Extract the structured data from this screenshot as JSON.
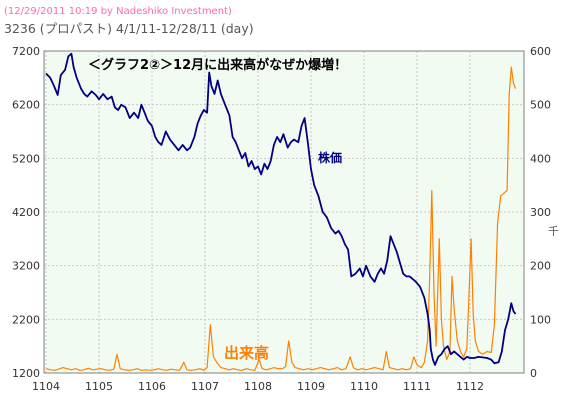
{
  "header": {
    "credit": "(12/29/2011 10:19 by Nadeshiko Investment)",
    "title": "3236 (プロパスト) 4/1/11-12/28/11 (day)"
  },
  "chart_data": {
    "type": "line",
    "annotation": "＜グラフ2②＞12月に出来高がなぜか爆増！",
    "price_label": "株価",
    "volume_label": "出来高",
    "y_right_unit": "千",
    "x_tick_labels": [
      "1104",
      "1105",
      "1106",
      "1107",
      "1108",
      "1109",
      "1110",
      "1111",
      "1112"
    ],
    "y_left_ticks": [
      1200,
      2200,
      3200,
      4200,
      5200,
      6200,
      7200
    ],
    "y_right_ticks": [
      0,
      100,
      200,
      300,
      400,
      500,
      600
    ],
    "ylim_left": [
      1200,
      7200
    ],
    "ylim_right": [
      0,
      600
    ],
    "x_index_range": [
      0,
      9.2
    ],
    "grid": true,
    "colors": {
      "price": "#000080",
      "volume": "#ff8000",
      "grid": "#c8c8c8",
      "plot_bg": "#f2fbf2",
      "credit": "#ff69b4",
      "annotation": "#000000",
      "volume_label": "#ff8000",
      "price_label": "#000080"
    },
    "series": [
      {
        "name": "株価",
        "axis": "left",
        "points": [
          [
            0.0,
            6780
          ],
          [
            0.08,
            6700
          ],
          [
            0.15,
            6550
          ],
          [
            0.22,
            6380
          ],
          [
            0.28,
            6750
          ],
          [
            0.36,
            6850
          ],
          [
            0.42,
            7100
          ],
          [
            0.48,
            7150
          ],
          [
            0.52,
            6900
          ],
          [
            0.58,
            6700
          ],
          [
            0.66,
            6500
          ],
          [
            0.72,
            6400
          ],
          [
            0.78,
            6350
          ],
          [
            0.86,
            6450
          ],
          [
            0.94,
            6380
          ],
          [
            1.0,
            6300
          ],
          [
            1.08,
            6400
          ],
          [
            1.16,
            6300
          ],
          [
            1.24,
            6350
          ],
          [
            1.3,
            6150
          ],
          [
            1.36,
            6100
          ],
          [
            1.42,
            6200
          ],
          [
            1.5,
            6150
          ],
          [
            1.58,
            5950
          ],
          [
            1.66,
            6050
          ],
          [
            1.74,
            5950
          ],
          [
            1.8,
            6200
          ],
          [
            1.86,
            6050
          ],
          [
            1.92,
            5900
          ],
          [
            2.0,
            5800
          ],
          [
            2.06,
            5600
          ],
          [
            2.12,
            5500
          ],
          [
            2.18,
            5450
          ],
          [
            2.26,
            5700
          ],
          [
            2.34,
            5550
          ],
          [
            2.42,
            5450
          ],
          [
            2.5,
            5350
          ],
          [
            2.58,
            5450
          ],
          [
            2.66,
            5350
          ],
          [
            2.72,
            5400
          ],
          [
            2.8,
            5600
          ],
          [
            2.86,
            5850
          ],
          [
            2.92,
            6000
          ],
          [
            2.98,
            6100
          ],
          [
            3.04,
            6050
          ],
          [
            3.08,
            6800
          ],
          [
            3.12,
            6550
          ],
          [
            3.18,
            6400
          ],
          [
            3.24,
            6650
          ],
          [
            3.3,
            6400
          ],
          [
            3.38,
            6200
          ],
          [
            3.46,
            6000
          ],
          [
            3.52,
            5600
          ],
          [
            3.58,
            5500
          ],
          [
            3.64,
            5350
          ],
          [
            3.7,
            5200
          ],
          [
            3.76,
            5300
          ],
          [
            3.82,
            5050
          ],
          [
            3.88,
            5150
          ],
          [
            3.94,
            5000
          ],
          [
            4.0,
            5050
          ],
          [
            4.06,
            4900
          ],
          [
            4.12,
            5100
          ],
          [
            4.18,
            5000
          ],
          [
            4.24,
            5150
          ],
          [
            4.3,
            5450
          ],
          [
            4.36,
            5600
          ],
          [
            4.42,
            5500
          ],
          [
            4.48,
            5650
          ],
          [
            4.56,
            5400
          ],
          [
            4.62,
            5500
          ],
          [
            4.68,
            5550
          ],
          [
            4.76,
            5500
          ],
          [
            4.82,
            5800
          ],
          [
            4.88,
            5950
          ],
          [
            4.94,
            5500
          ],
          [
            5.0,
            5000
          ],
          [
            5.06,
            4700
          ],
          [
            5.14,
            4500
          ],
          [
            5.22,
            4200
          ],
          [
            5.3,
            4100
          ],
          [
            5.38,
            3900
          ],
          [
            5.46,
            3800
          ],
          [
            5.52,
            3850
          ],
          [
            5.58,
            3750
          ],
          [
            5.64,
            3600
          ],
          [
            5.7,
            3500
          ],
          [
            5.76,
            3000
          ],
          [
            5.84,
            3050
          ],
          [
            5.92,
            3150
          ],
          [
            5.98,
            3000
          ],
          [
            6.04,
            3200
          ],
          [
            6.12,
            3000
          ],
          [
            6.2,
            2900
          ],
          [
            6.26,
            3050
          ],
          [
            6.32,
            3150
          ],
          [
            6.38,
            3050
          ],
          [
            6.44,
            3300
          ],
          [
            6.5,
            3750
          ],
          [
            6.56,
            3600
          ],
          [
            6.62,
            3450
          ],
          [
            6.68,
            3250
          ],
          [
            6.74,
            3050
          ],
          [
            6.8,
            3000
          ],
          [
            6.86,
            3000
          ],
          [
            6.92,
            2950
          ],
          [
            6.98,
            2900
          ],
          [
            7.06,
            2800
          ],
          [
            7.14,
            2600
          ],
          [
            7.2,
            2300
          ],
          [
            7.24,
            2000
          ],
          [
            7.26,
            1650
          ],
          [
            7.3,
            1450
          ],
          [
            7.34,
            1350
          ],
          [
            7.4,
            1500
          ],
          [
            7.46,
            1550
          ],
          [
            7.52,
            1650
          ],
          [
            7.58,
            1700
          ],
          [
            7.64,
            1550
          ],
          [
            7.7,
            1600
          ],
          [
            7.76,
            1550
          ],
          [
            7.82,
            1500
          ],
          [
            7.88,
            1450
          ],
          [
            7.94,
            1500
          ],
          [
            8.0,
            1480
          ],
          [
            8.08,
            1480
          ],
          [
            8.16,
            1500
          ],
          [
            8.24,
            1490
          ],
          [
            8.32,
            1480
          ],
          [
            8.4,
            1450
          ],
          [
            8.46,
            1380
          ],
          [
            8.54,
            1400
          ],
          [
            8.6,
            1600
          ],
          [
            8.66,
            2000
          ],
          [
            8.72,
            2200
          ],
          [
            8.78,
            2500
          ],
          [
            8.82,
            2350
          ],
          [
            8.86,
            2300
          ]
        ]
      },
      {
        "name": "出来高",
        "axis": "right",
        "points": [
          [
            0.0,
            8
          ],
          [
            0.08,
            6
          ],
          [
            0.16,
            5
          ],
          [
            0.24,
            7
          ],
          [
            0.32,
            10
          ],
          [
            0.4,
            8
          ],
          [
            0.48,
            6
          ],
          [
            0.56,
            8
          ],
          [
            0.64,
            5
          ],
          [
            0.72,
            6
          ],
          [
            0.8,
            9
          ],
          [
            0.88,
            6
          ],
          [
            0.96,
            7
          ],
          [
            1.04,
            8
          ],
          [
            1.12,
            6
          ],
          [
            1.2,
            5
          ],
          [
            1.28,
            7
          ],
          [
            1.34,
            35
          ],
          [
            1.4,
            8
          ],
          [
            1.48,
            6
          ],
          [
            1.56,
            5
          ],
          [
            1.64,
            6
          ],
          [
            1.72,
            8
          ],
          [
            1.8,
            5
          ],
          [
            1.88,
            6
          ],
          [
            1.96,
            5
          ],
          [
            2.04,
            6
          ],
          [
            2.12,
            8
          ],
          [
            2.2,
            6
          ],
          [
            2.28,
            5
          ],
          [
            2.36,
            7
          ],
          [
            2.44,
            6
          ],
          [
            2.52,
            5
          ],
          [
            2.6,
            20
          ],
          [
            2.66,
            6
          ],
          [
            2.74,
            5
          ],
          [
            2.82,
            6
          ],
          [
            2.9,
            8
          ],
          [
            2.98,
            5
          ],
          [
            3.04,
            10
          ],
          [
            3.1,
            90
          ],
          [
            3.16,
            30
          ],
          [
            3.22,
            20
          ],
          [
            3.3,
            10
          ],
          [
            3.38,
            8
          ],
          [
            3.46,
            6
          ],
          [
            3.54,
            8
          ],
          [
            3.62,
            6
          ],
          [
            3.7,
            5
          ],
          [
            3.78,
            8
          ],
          [
            3.86,
            6
          ],
          [
            3.94,
            5
          ],
          [
            4.02,
            25
          ],
          [
            4.08,
            8
          ],
          [
            4.16,
            6
          ],
          [
            4.24,
            8
          ],
          [
            4.3,
            10
          ],
          [
            4.38,
            8
          ],
          [
            4.46,
            8
          ],
          [
            4.52,
            12
          ],
          [
            4.58,
            60
          ],
          [
            4.64,
            20
          ],
          [
            4.7,
            10
          ],
          [
            4.78,
            8
          ],
          [
            4.86,
            6
          ],
          [
            4.94,
            8
          ],
          [
            5.02,
            6
          ],
          [
            5.1,
            8
          ],
          [
            5.18,
            10
          ],
          [
            5.26,
            8
          ],
          [
            5.34,
            6
          ],
          [
            5.42,
            8
          ],
          [
            5.5,
            10
          ],
          [
            5.58,
            6
          ],
          [
            5.66,
            8
          ],
          [
            5.74,
            30
          ],
          [
            5.8,
            10
          ],
          [
            5.88,
            6
          ],
          [
            5.96,
            8
          ],
          [
            6.04,
            6
          ],
          [
            6.12,
            8
          ],
          [
            6.2,
            10
          ],
          [
            6.28,
            8
          ],
          [
            6.36,
            6
          ],
          [
            6.42,
            40
          ],
          [
            6.48,
            10
          ],
          [
            6.56,
            8
          ],
          [
            6.64,
            6
          ],
          [
            6.72,
            8
          ],
          [
            6.8,
            6
          ],
          [
            6.88,
            8
          ],
          [
            6.94,
            30
          ],
          [
            7.0,
            15
          ],
          [
            7.08,
            10
          ],
          [
            7.14,
            20
          ],
          [
            7.2,
            60
          ],
          [
            7.24,
            180
          ],
          [
            7.28,
            340
          ],
          [
            7.32,
            150
          ],
          [
            7.36,
            50
          ],
          [
            7.42,
            250
          ],
          [
            7.46,
            100
          ],
          [
            7.5,
            50
          ],
          [
            7.56,
            25
          ],
          [
            7.62,
            40
          ],
          [
            7.66,
            180
          ],
          [
            7.7,
            120
          ],
          [
            7.76,
            60
          ],
          [
            7.82,
            40
          ],
          [
            7.88,
            30
          ],
          [
            7.94,
            45
          ],
          [
            7.98,
            140
          ],
          [
            8.02,
            250
          ],
          [
            8.06,
            110
          ],
          [
            8.1,
            60
          ],
          [
            8.16,
            40
          ],
          [
            8.24,
            35
          ],
          [
            8.32,
            40
          ],
          [
            8.4,
            38
          ],
          [
            8.46,
            90
          ],
          [
            8.52,
            280
          ],
          [
            8.58,
            330
          ],
          [
            8.64,
            335
          ],
          [
            8.7,
            340
          ],
          [
            8.74,
            520
          ],
          [
            8.78,
            570
          ],
          [
            8.82,
            540
          ],
          [
            8.86,
            530
          ]
        ]
      }
    ]
  }
}
